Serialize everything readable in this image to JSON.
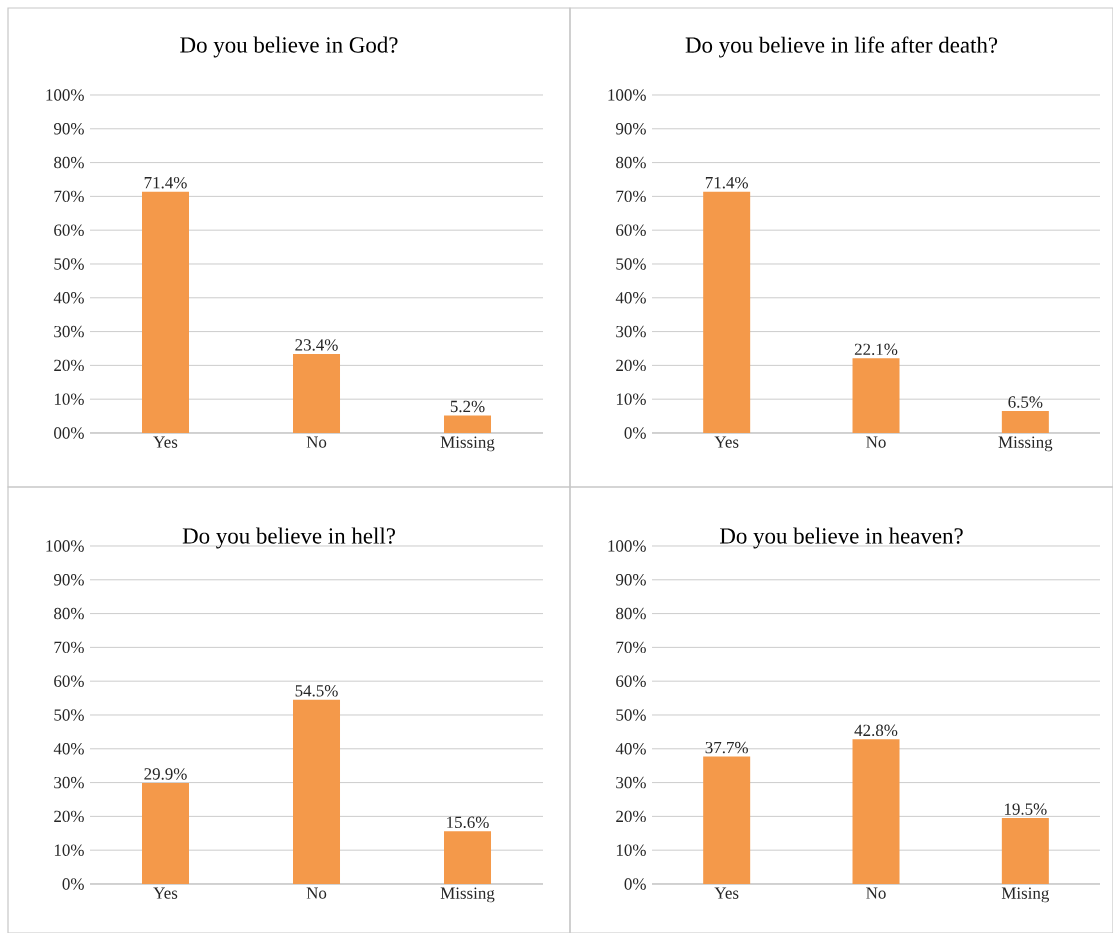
{
  "chart_data": [
    {
      "type": "bar",
      "title": "Do you believe in God?",
      "categories": [
        "Yes",
        "No",
        "Missing"
      ],
      "values": [
        71.4,
        23.4,
        5.2
      ],
      "value_labels": [
        "71.4%",
        "23.4%",
        "5.2%"
      ],
      "color": "#f4994a",
      "ylim": [
        0,
        100
      ],
      "grid": "y",
      "yticks": [
        {
          "value": 0,
          "label": "00%"
        },
        {
          "value": 10,
          "label": "10%"
        },
        {
          "value": 20,
          "label": "20%"
        },
        {
          "value": 30,
          "label": "30%"
        },
        {
          "value": 40,
          "label": "40%"
        },
        {
          "value": 50,
          "label": "50%"
        },
        {
          "value": 60,
          "label": "60%"
        },
        {
          "value": 70,
          "label": "70%"
        },
        {
          "value": 80,
          "label": "80%"
        },
        {
          "value": 90,
          "label": "90%"
        },
        {
          "value": 100,
          "label": "100%"
        }
      ]
    },
    {
      "type": "bar",
      "title": "Do you believe in life after death?",
      "categories": [
        "Yes",
        "No",
        "Missing"
      ],
      "values": [
        71.4,
        22.1,
        6.5
      ],
      "value_labels": [
        "71.4%",
        "22.1%",
        "6.5%"
      ],
      "color": "#f4994a",
      "ylim": [
        0,
        100
      ],
      "grid": "y",
      "yticks": [
        {
          "value": 0,
          "label": "0%"
        },
        {
          "value": 10,
          "label": "10%"
        },
        {
          "value": 20,
          "label": "20%"
        },
        {
          "value": 30,
          "label": "30%"
        },
        {
          "value": 40,
          "label": "40%"
        },
        {
          "value": 50,
          "label": "50%"
        },
        {
          "value": 60,
          "label": "60%"
        },
        {
          "value": 70,
          "label": "70%"
        },
        {
          "value": 80,
          "label": "80%"
        },
        {
          "value": 90,
          "label": "90%"
        },
        {
          "value": 100,
          "label": "100%"
        }
      ]
    },
    {
      "type": "bar",
      "title": "Do you believe in hell?",
      "categories": [
        "Yes",
        "No",
        "Missing"
      ],
      "values": [
        29.9,
        54.5,
        15.6
      ],
      "value_labels": [
        "29.9%",
        "54.5%",
        "15.6%"
      ],
      "color": "#f4994a",
      "ylim": [
        0,
        100
      ],
      "grid": "y",
      "yticks": [
        {
          "value": 0,
          "label": "0%"
        },
        {
          "value": 10,
          "label": "10%"
        },
        {
          "value": 20,
          "label": "20%"
        },
        {
          "value": 30,
          "label": "30%"
        },
        {
          "value": 40,
          "label": "40%"
        },
        {
          "value": 50,
          "label": "50%"
        },
        {
          "value": 60,
          "label": "60%"
        },
        {
          "value": 70,
          "label": "70%"
        },
        {
          "value": 80,
          "label": "80%"
        },
        {
          "value": 90,
          "label": "90%"
        },
        {
          "value": 100,
          "label": "100%"
        }
      ]
    },
    {
      "type": "bar",
      "title": "Do you believe in heaven?",
      "categories": [
        "Yes",
        "No",
        "Mising"
      ],
      "values": [
        37.7,
        42.8,
        19.5
      ],
      "value_labels": [
        "37.7%",
        "42.8%",
        "19.5%"
      ],
      "color": "#f4994a",
      "ylim": [
        0,
        100
      ],
      "grid": "y",
      "yticks": [
        {
          "value": 0,
          "label": "0%"
        },
        {
          "value": 10,
          "label": "10%"
        },
        {
          "value": 20,
          "label": "20%"
        },
        {
          "value": 30,
          "label": "30%"
        },
        {
          "value": 40,
          "label": "40%"
        },
        {
          "value": 50,
          "label": "50%"
        },
        {
          "value": 60,
          "label": "60%"
        },
        {
          "value": 70,
          "label": "70%"
        },
        {
          "value": 80,
          "label": "80%"
        },
        {
          "value": 90,
          "label": "90%"
        },
        {
          "value": 100,
          "label": "100%"
        }
      ]
    }
  ]
}
